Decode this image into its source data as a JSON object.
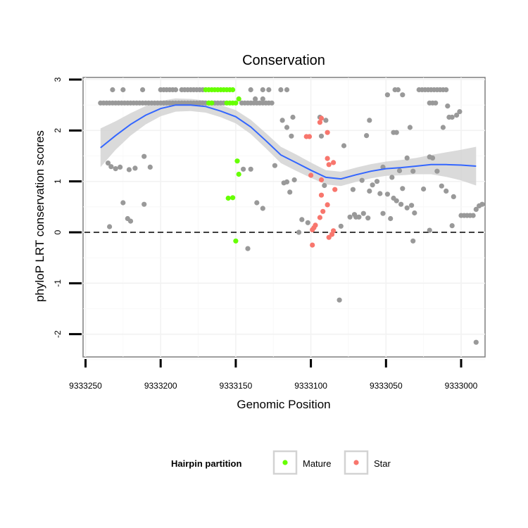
{
  "chart_data": {
    "type": "scatter",
    "title": "Conservation",
    "xlabel": "Genomic Position",
    "ylabel": "phyloP LRT conservation scores",
    "x_reversed": true,
    "xlim": [
      9333252,
      9332984
    ],
    "ylim": [
      -2.4,
      3.0
    ],
    "x_ticks": [
      9333250,
      9333200,
      9333150,
      9333100,
      9333050,
      9333000
    ],
    "x_tick_labels": [
      "9333250",
      "9333200",
      "9333150",
      "9333100",
      "9333050",
      "9333000"
    ],
    "y_ticks": [
      -2,
      -1,
      0,
      1,
      2,
      3
    ],
    "y_tick_labels": [
      "-2",
      "-1",
      "0",
      "1",
      "2",
      "3"
    ],
    "reference_line": {
      "y": 0,
      "style": "dashed",
      "color": "#000000"
    },
    "legend": {
      "title": "Hairpin partition",
      "position": "bottom",
      "entries": [
        {
          "label": "Mature",
          "color": "#66ff00"
        },
        {
          "label": "Star",
          "color": "#f8766d"
        }
      ]
    },
    "colors": {
      "other": "#999999",
      "Mature": "#66ff00",
      "Star": "#f8766d",
      "smooth": "#3366ff",
      "band": "#d3d3d3"
    },
    "series": [
      {
        "name": "Other",
        "color": "#999999",
        "points": [
          [
            9333240,
            2.54
          ],
          [
            9333238,
            2.54
          ],
          [
            9333236,
            2.54
          ],
          [
            9333234,
            2.54
          ],
          [
            9333232,
            2.54
          ],
          [
            9333230,
            2.54
          ],
          [
            9333228,
            2.54
          ],
          [
            9333226,
            2.54
          ],
          [
            9333224,
            2.54
          ],
          [
            9333222,
            2.54
          ],
          [
            9333220,
            2.54
          ],
          [
            9333218,
            2.54
          ],
          [
            9333216,
            2.54
          ],
          [
            9333214,
            2.54
          ],
          [
            9333212,
            2.54
          ],
          [
            9333210,
            2.54
          ],
          [
            9333208,
            2.54
          ],
          [
            9333206,
            2.54
          ],
          [
            9333204,
            2.54
          ],
          [
            9333202,
            2.54
          ],
          [
            9333200,
            2.54
          ],
          [
            9333198,
            2.54
          ],
          [
            9333196,
            2.54
          ],
          [
            9333194,
            2.54
          ],
          [
            9333192,
            2.54
          ],
          [
            9333190,
            2.54
          ],
          [
            9333188,
            2.54
          ],
          [
            9333186,
            2.54
          ],
          [
            9333184,
            2.54
          ],
          [
            9333182,
            2.54
          ],
          [
            9333180,
            2.54
          ],
          [
            9333178,
            2.54
          ],
          [
            9333176,
            2.54
          ],
          [
            9333174,
            2.54
          ],
          [
            9333172,
            2.54
          ],
          [
            9333170,
            2.54
          ],
          [
            9333168,
            2.54
          ],
          [
            9333166,
            2.54
          ],
          [
            9333164,
            2.54
          ],
          [
            9333162,
            2.54
          ],
          [
            9333160,
            2.54
          ],
          [
            9333158,
            2.54
          ],
          [
            9333146,
            2.54
          ],
          [
            9333144,
            2.54
          ],
          [
            9333142,
            2.54
          ],
          [
            9333140,
            2.54
          ],
          [
            9333138,
            2.54
          ],
          [
            9333136,
            2.54
          ],
          [
            9333134,
            2.54
          ],
          [
            9333132,
            2.54
          ],
          [
            9333130,
            2.54
          ],
          [
            9333128,
            2.54
          ],
          [
            9333126,
            2.54
          ],
          [
            9333232,
            2.8
          ],
          [
            9333225,
            2.8
          ],
          [
            9333212,
            2.8
          ],
          [
            9333200,
            2.8
          ],
          [
            9333198,
            2.8
          ],
          [
            9333196,
            2.8
          ],
          [
            9333194,
            2.8
          ],
          [
            9333192,
            2.8
          ],
          [
            9333190,
            2.8
          ],
          [
            9333186,
            2.8
          ],
          [
            9333184,
            2.8
          ],
          [
            9333182,
            2.8
          ],
          [
            9333180,
            2.8
          ],
          [
            9333178,
            2.8
          ],
          [
            9333176,
            2.8
          ],
          [
            9333174,
            2.8
          ],
          [
            9333172,
            2.8
          ],
          [
            9333140,
            2.8
          ],
          [
            9333132,
            2.8
          ],
          [
            9333128,
            2.8
          ],
          [
            9333120,
            2.8
          ],
          [
            9333116,
            2.8
          ],
          [
            9333044,
            2.8
          ],
          [
            9333042,
            2.8
          ],
          [
            9333028,
            2.8
          ],
          [
            9333026,
            2.8
          ],
          [
            9333024,
            2.8
          ],
          [
            9333022,
            2.8
          ],
          [
            9333020,
            2.8
          ],
          [
            9333018,
            2.8
          ],
          [
            9333016,
            2.8
          ],
          [
            9333014,
            2.8
          ],
          [
            9333012,
            2.8
          ],
          [
            9333010,
            2.8
          ],
          [
            9333049,
            2.7
          ],
          [
            9333039,
            2.7
          ],
          [
            9333137,
            2.62
          ],
          [
            9333132,
            2.62
          ],
          [
            9333021,
            2.54
          ],
          [
            9333019,
            2.54
          ],
          [
            9333017,
            2.54
          ],
          [
            9333009,
            2.48
          ],
          [
            9333112,
            2.26
          ],
          [
            9333094,
            2.26
          ],
          [
            9333119,
            2.2
          ],
          [
            9333090,
            2.2
          ],
          [
            9333061,
            2.2
          ],
          [
            9333008,
            2.26
          ],
          [
            9333006,
            2.26
          ],
          [
            9333116,
            2.06
          ],
          [
            9333034,
            2.06
          ],
          [
            9333012,
            2.06
          ],
          [
            9333001,
            2.37
          ],
          [
            9333003,
            2.3
          ],
          [
            9333063,
            1.9
          ],
          [
            9333045,
            1.96
          ],
          [
            9333043,
            1.96
          ],
          [
            9333113,
            1.89
          ],
          [
            9333093,
            1.89
          ],
          [
            9333078,
            1.7
          ],
          [
            9333211,
            1.49
          ],
          [
            9333036,
            1.46
          ],
          [
            9333021,
            1.48
          ],
          [
            9333019,
            1.46
          ],
          [
            9333235,
            1.36
          ],
          [
            9333233,
            1.29
          ],
          [
            9333230,
            1.25
          ],
          [
            9333227,
            1.28
          ],
          [
            9333221,
            1.23
          ],
          [
            9333217,
            1.26
          ],
          [
            9333207,
            1.28
          ],
          [
            9333145,
            1.24
          ],
          [
            9333140,
            1.24
          ],
          [
            9333124,
            1.31
          ],
          [
            9333052,
            1.28
          ],
          [
            9333041,
            1.21
          ],
          [
            9333032,
            1.2
          ],
          [
            9333016,
            1.2
          ],
          [
            9333066,
            1.02
          ],
          [
            9333056,
            1.0
          ],
          [
            9333046,
            1.08
          ],
          [
            9333039,
            0.86
          ],
          [
            9333025,
            0.85
          ],
          [
            9333013,
            0.91
          ],
          [
            9333111,
            1.03
          ],
          [
            9333091,
            0.92
          ],
          [
            9333072,
            0.84
          ],
          [
            9333061,
            0.81
          ],
          [
            9333059,
            0.93
          ],
          [
            9333054,
            0.76
          ],
          [
            9333049,
            0.75
          ],
          [
            9333045,
            0.67
          ],
          [
            9333043,
            0.62
          ],
          [
            9333040,
            0.55
          ],
          [
            9333036,
            0.48
          ],
          [
            9333033,
            0.53
          ],
          [
            9333031,
            0.38
          ],
          [
            9333065,
            0.37
          ],
          [
            9333074,
            0.3
          ],
          [
            9333070,
            0.3
          ],
          [
            9333071,
            0.35
          ],
          [
            9333010,
            0.81
          ],
          [
            9333005,
            0.7
          ],
          [
            9333000,
            0.33
          ],
          [
            9332998,
            0.33
          ],
          [
            9332996,
            0.33
          ],
          [
            9332994,
            0.33
          ],
          [
            9332992,
            0.33
          ],
          [
            9332990,
            0.45
          ],
          [
            9332988,
            0.52
          ],
          [
            9332986,
            0.55
          ],
          [
            9333225,
            0.58
          ],
          [
            9333211,
            0.55
          ],
          [
            9333222,
            0.27
          ],
          [
            9333220,
            0.22
          ],
          [
            9333234,
            0.11
          ],
          [
            9333136,
            0.58
          ],
          [
            9333132,
            0.47
          ],
          [
            9333118,
            0.97
          ],
          [
            9333116,
            0.99
          ],
          [
            9333114,
            0.79
          ],
          [
            9333106,
            0.25
          ],
          [
            9333102,
            0.19
          ],
          [
            9333068,
            0.3
          ],
          [
            9333062,
            0.28
          ],
          [
            9333052,
            0.37
          ],
          [
            9333047,
            0.27
          ],
          [
            9333080,
            0.12
          ],
          [
            9333032,
            -0.17
          ],
          [
            9333021,
            0.04
          ],
          [
            9333006,
            0.13
          ],
          [
            9333108,
            0.0
          ],
          [
            9333142,
            -0.32
          ],
          [
            9333081,
            -1.33
          ],
          [
            9332990,
            -2.16
          ]
        ]
      },
      {
        "name": "Mature",
        "color": "#66ff00",
        "points": [
          [
            9333170,
            2.8
          ],
          [
            9333168,
            2.8
          ],
          [
            9333166,
            2.8
          ],
          [
            9333164,
            2.8
          ],
          [
            9333162,
            2.8
          ],
          [
            9333160,
            2.8
          ],
          [
            9333158,
            2.8
          ],
          [
            9333156,
            2.8
          ],
          [
            9333154,
            2.8
          ],
          [
            9333152,
            2.8
          ],
          [
            9333148,
            2.62
          ],
          [
            9333168,
            2.54
          ],
          [
            9333166,
            2.54
          ],
          [
            9333156,
            2.54
          ],
          [
            9333154,
            2.54
          ],
          [
            9333152,
            2.54
          ],
          [
            9333150,
            2.54
          ],
          [
            9333149,
            1.4
          ],
          [
            9333148,
            1.14
          ],
          [
            9333155,
            0.67
          ],
          [
            9333152,
            0.68
          ],
          [
            9333150,
            -0.17
          ]
        ]
      },
      {
        "name": "Star",
        "color": "#f8766d",
        "points": [
          [
            9333093,
            2.24
          ],
          [
            9333094,
            2.16
          ],
          [
            9333089,
            1.96
          ],
          [
            9333103,
            1.88
          ],
          [
            9333101,
            1.88
          ],
          [
            9333089,
            1.45
          ],
          [
            9333088,
            1.33
          ],
          [
            9333085,
            1.37
          ],
          [
            9333100,
            1.12
          ],
          [
            9333093,
            1.03
          ],
          [
            9333084,
            0.84
          ],
          [
            9333093,
            0.73
          ],
          [
            9333089,
            0.54
          ],
          [
            9333092,
            0.41
          ],
          [
            9333094,
            0.29
          ],
          [
            9333097,
            0.14
          ],
          [
            9333099,
            0.05
          ],
          [
            9333098,
            0.09
          ],
          [
            9333085,
            0.03
          ],
          [
            9333086,
            -0.04
          ],
          [
            9333088,
            -0.1
          ],
          [
            9333099,
            -0.25
          ]
        ]
      }
    ],
    "smooth_line": {
      "color": "#3366ff",
      "x": [
        9333240,
        9333230,
        9333220,
        9333210,
        9333200,
        9333190,
        9333180,
        9333170,
        9333160,
        9333150,
        9333140,
        9333130,
        9333120,
        9333110,
        9333100,
        9333090,
        9333080,
        9333070,
        9333060,
        9333050,
        9333040,
        9333030,
        9333020,
        9333010,
        9333000,
        9332990
      ],
      "y": [
        1.66,
        1.9,
        2.12,
        2.3,
        2.43,
        2.5,
        2.5,
        2.47,
        2.38,
        2.27,
        2.07,
        1.8,
        1.52,
        1.37,
        1.22,
        1.08,
        1.05,
        1.13,
        1.2,
        1.25,
        1.27,
        1.3,
        1.33,
        1.33,
        1.32,
        1.3
      ],
      "band_half_width": [
        0.38,
        0.28,
        0.22,
        0.18,
        0.15,
        0.13,
        0.12,
        0.12,
        0.12,
        0.13,
        0.14,
        0.15,
        0.16,
        0.16,
        0.15,
        0.14,
        0.14,
        0.14,
        0.14,
        0.14,
        0.15,
        0.16,
        0.19,
        0.24,
        0.3,
        0.38
      ]
    }
  }
}
